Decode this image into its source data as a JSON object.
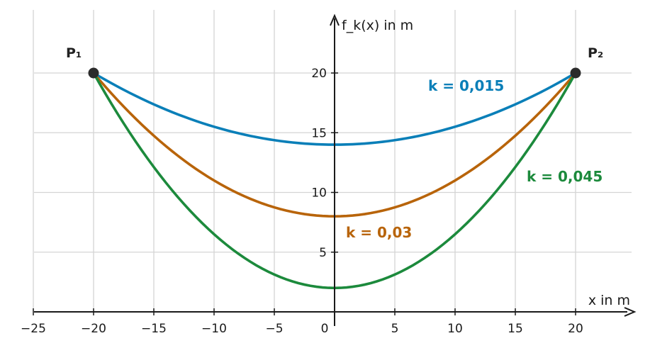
{
  "chart_data": {
    "type": "line",
    "xlabel": "x in m",
    "ylabel": "f_k(x) in m",
    "xlim": [
      -25,
      24
    ],
    "ylim": [
      0,
      24
    ],
    "x_ticks": [
      -25,
      -20,
      -15,
      -10,
      -5,
      0,
      5,
      10,
      15,
      20
    ],
    "x_tick_labels": [
      "−25",
      "−20",
      "−15",
      "−10",
      "−5",
      "0",
      "5",
      "10",
      "15",
      "20"
    ],
    "y_ticks": [
      5,
      10,
      15,
      20
    ],
    "y_tick_labels": [
      "5",
      "10",
      "15",
      "20"
    ],
    "grid": true,
    "series": [
      {
        "name": "k = 0,015",
        "k": 0.015,
        "color": "#0a7fb8",
        "formula": "k*x^2 + 20 - 400*k",
        "x": [
          -20,
          -10,
          0,
          10,
          20
        ],
        "y": [
          20,
          15.5,
          14,
          15.5,
          20
        ]
      },
      {
        "name": "k = 0,03",
        "k": 0.03,
        "color": "#b8640a",
        "formula": "k*x^2 + 20 - 400*k",
        "x": [
          -20,
          -10,
          0,
          10,
          20
        ],
        "y": [
          20,
          11,
          8,
          11,
          20
        ]
      },
      {
        "name": "k = 0,045",
        "k": 0.045,
        "color": "#1c8a3c",
        "formula": "k*x^2 + 20 - 400*k",
        "x": [
          -20,
          -10,
          0,
          10,
          20
        ],
        "y": [
          20,
          6.5,
          2,
          6.5,
          20
        ]
      }
    ],
    "points": [
      {
        "name": "P₁",
        "x": -20,
        "y": 20
      },
      {
        "name": "P₂",
        "x": 20,
        "y": 20
      }
    ]
  }
}
